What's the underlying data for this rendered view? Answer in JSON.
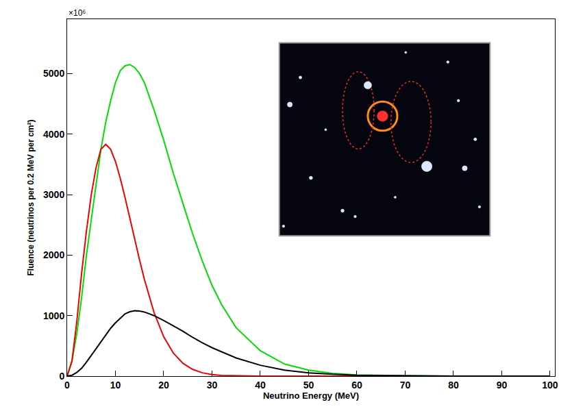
{
  "chart_data": {
    "type": "line",
    "x_label": "Neutrino Energy (MeV)",
    "y_label": "Fluence (neutrinos per 0.2 MeV per cm²)",
    "annotations": [
      "×10⁶"
    ],
    "x": [
      0,
      1,
      2,
      3,
      4,
      5,
      6,
      7,
      8,
      9,
      10,
      11,
      12,
      13,
      14,
      15,
      16,
      18,
      20,
      22,
      24,
      26,
      28,
      30,
      32,
      35,
      40,
      45,
      50,
      55,
      60,
      70,
      80,
      90,
      100
    ],
    "series": [
      {
        "color": "#00dd00",
        "values": [
          0,
          250,
          700,
          1300,
          2000,
          2600,
          3200,
          3750,
          4200,
          4550,
          4850,
          5050,
          5130,
          5150,
          5100,
          5000,
          4850,
          4400,
          3900,
          3350,
          2850,
          2350,
          1900,
          1500,
          1180,
          800,
          420,
          200,
          100,
          45,
          20,
          5,
          1,
          0,
          0
        ]
      },
      {
        "color": "#ee0000",
        "values": [
          0,
          250,
          900,
          1700,
          2400,
          3000,
          3450,
          3750,
          3830,
          3750,
          3550,
          3270,
          2950,
          2600,
          2250,
          1920,
          1600,
          1050,
          650,
          380,
          210,
          110,
          55,
          25,
          12,
          5,
          1,
          0,
          0,
          0,
          0,
          0,
          0,
          0,
          0
        ]
      },
      {
        "color": "#000000",
        "values": [
          0,
          15,
          60,
          130,
          230,
          340,
          450,
          570,
          680,
          790,
          880,
          960,
          1030,
          1065,
          1080,
          1075,
          1060,
          1000,
          920,
          830,
          740,
          640,
          550,
          470,
          400,
          300,
          180,
          100,
          55,
          30,
          15,
          4,
          1,
          0,
          0
        ]
      }
    ],
    "xlim": [
      0,
      101
    ],
    "xticks": [
      0,
      10,
      20,
      30,
      40,
      50,
      60,
      70,
      80,
      90,
      100
    ],
    "ylim": [
      0,
      5900
    ],
    "yticks": [
      0,
      1000,
      2000,
      3000,
      4000,
      5000
    ],
    "grid": false
  }
}
